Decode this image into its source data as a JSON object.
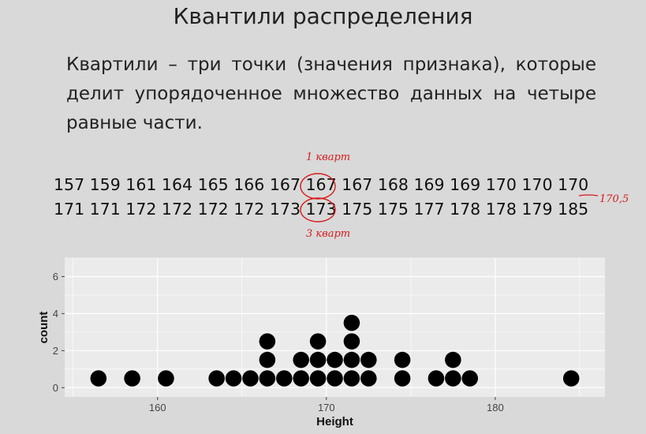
{
  "title": "Квантили распределения",
  "definition": "Квартили – три точки (значения признака), которые делит упорядоченное множество данных на четыре равные части.",
  "sequence": {
    "row1": "157 159 161 164 165 166 167 167 167 168 169 169 170 170 170",
    "row2": "171 171 172 172 172 172 173 173 175 175 177 178 178 179 185"
  },
  "annotations": {
    "q1": "1 кварт",
    "q3": "3 кварт",
    "median": "170,5"
  },
  "colors": {
    "background": "#d9d9d9",
    "annotation": "#d81b1b",
    "dots": "#000000"
  },
  "chart_data": {
    "type": "dotplot",
    "xlabel": "Height",
    "ylabel": "count",
    "xlim": [
      154.5,
      186.5
    ],
    "ylim": [
      -0.5,
      7
    ],
    "xticks": [
      160,
      170,
      180
    ],
    "yticks": [
      0,
      2,
      4,
      6
    ],
    "grid": true,
    "points": [
      {
        "x": 156.5,
        "y": 0.5
      },
      {
        "x": 158.5,
        "y": 0.5
      },
      {
        "x": 160.5,
        "y": 0.5
      },
      {
        "x": 163.5,
        "y": 0.5
      },
      {
        "x": 164.5,
        "y": 0.5
      },
      {
        "x": 165.5,
        "y": 0.5
      },
      {
        "x": 166.5,
        "y": 0.5
      },
      {
        "x": 166.5,
        "y": 1.5
      },
      {
        "x": 166.5,
        "y": 2.5
      },
      {
        "x": 167.5,
        "y": 0.5
      },
      {
        "x": 168.5,
        "y": 0.5
      },
      {
        "x": 168.5,
        "y": 1.5
      },
      {
        "x": 169.5,
        "y": 0.5
      },
      {
        "x": 169.5,
        "y": 1.5
      },
      {
        "x": 169.5,
        "y": 2.5
      },
      {
        "x": 170.5,
        "y": 0.5
      },
      {
        "x": 170.5,
        "y": 1.5
      },
      {
        "x": 171.5,
        "y": 0.5
      },
      {
        "x": 171.5,
        "y": 1.5
      },
      {
        "x": 171.5,
        "y": 2.5
      },
      {
        "x": 171.5,
        "y": 3.5
      },
      {
        "x": 172.5,
        "y": 0.5
      },
      {
        "x": 172.5,
        "y": 1.5
      },
      {
        "x": 174.5,
        "y": 0.5
      },
      {
        "x": 174.5,
        "y": 1.5
      },
      {
        "x": 176.5,
        "y": 0.5
      },
      {
        "x": 177.5,
        "y": 0.5
      },
      {
        "x": 177.5,
        "y": 1.5
      },
      {
        "x": 178.5,
        "y": 0.5
      },
      {
        "x": 184.5,
        "y": 0.5
      }
    ]
  }
}
